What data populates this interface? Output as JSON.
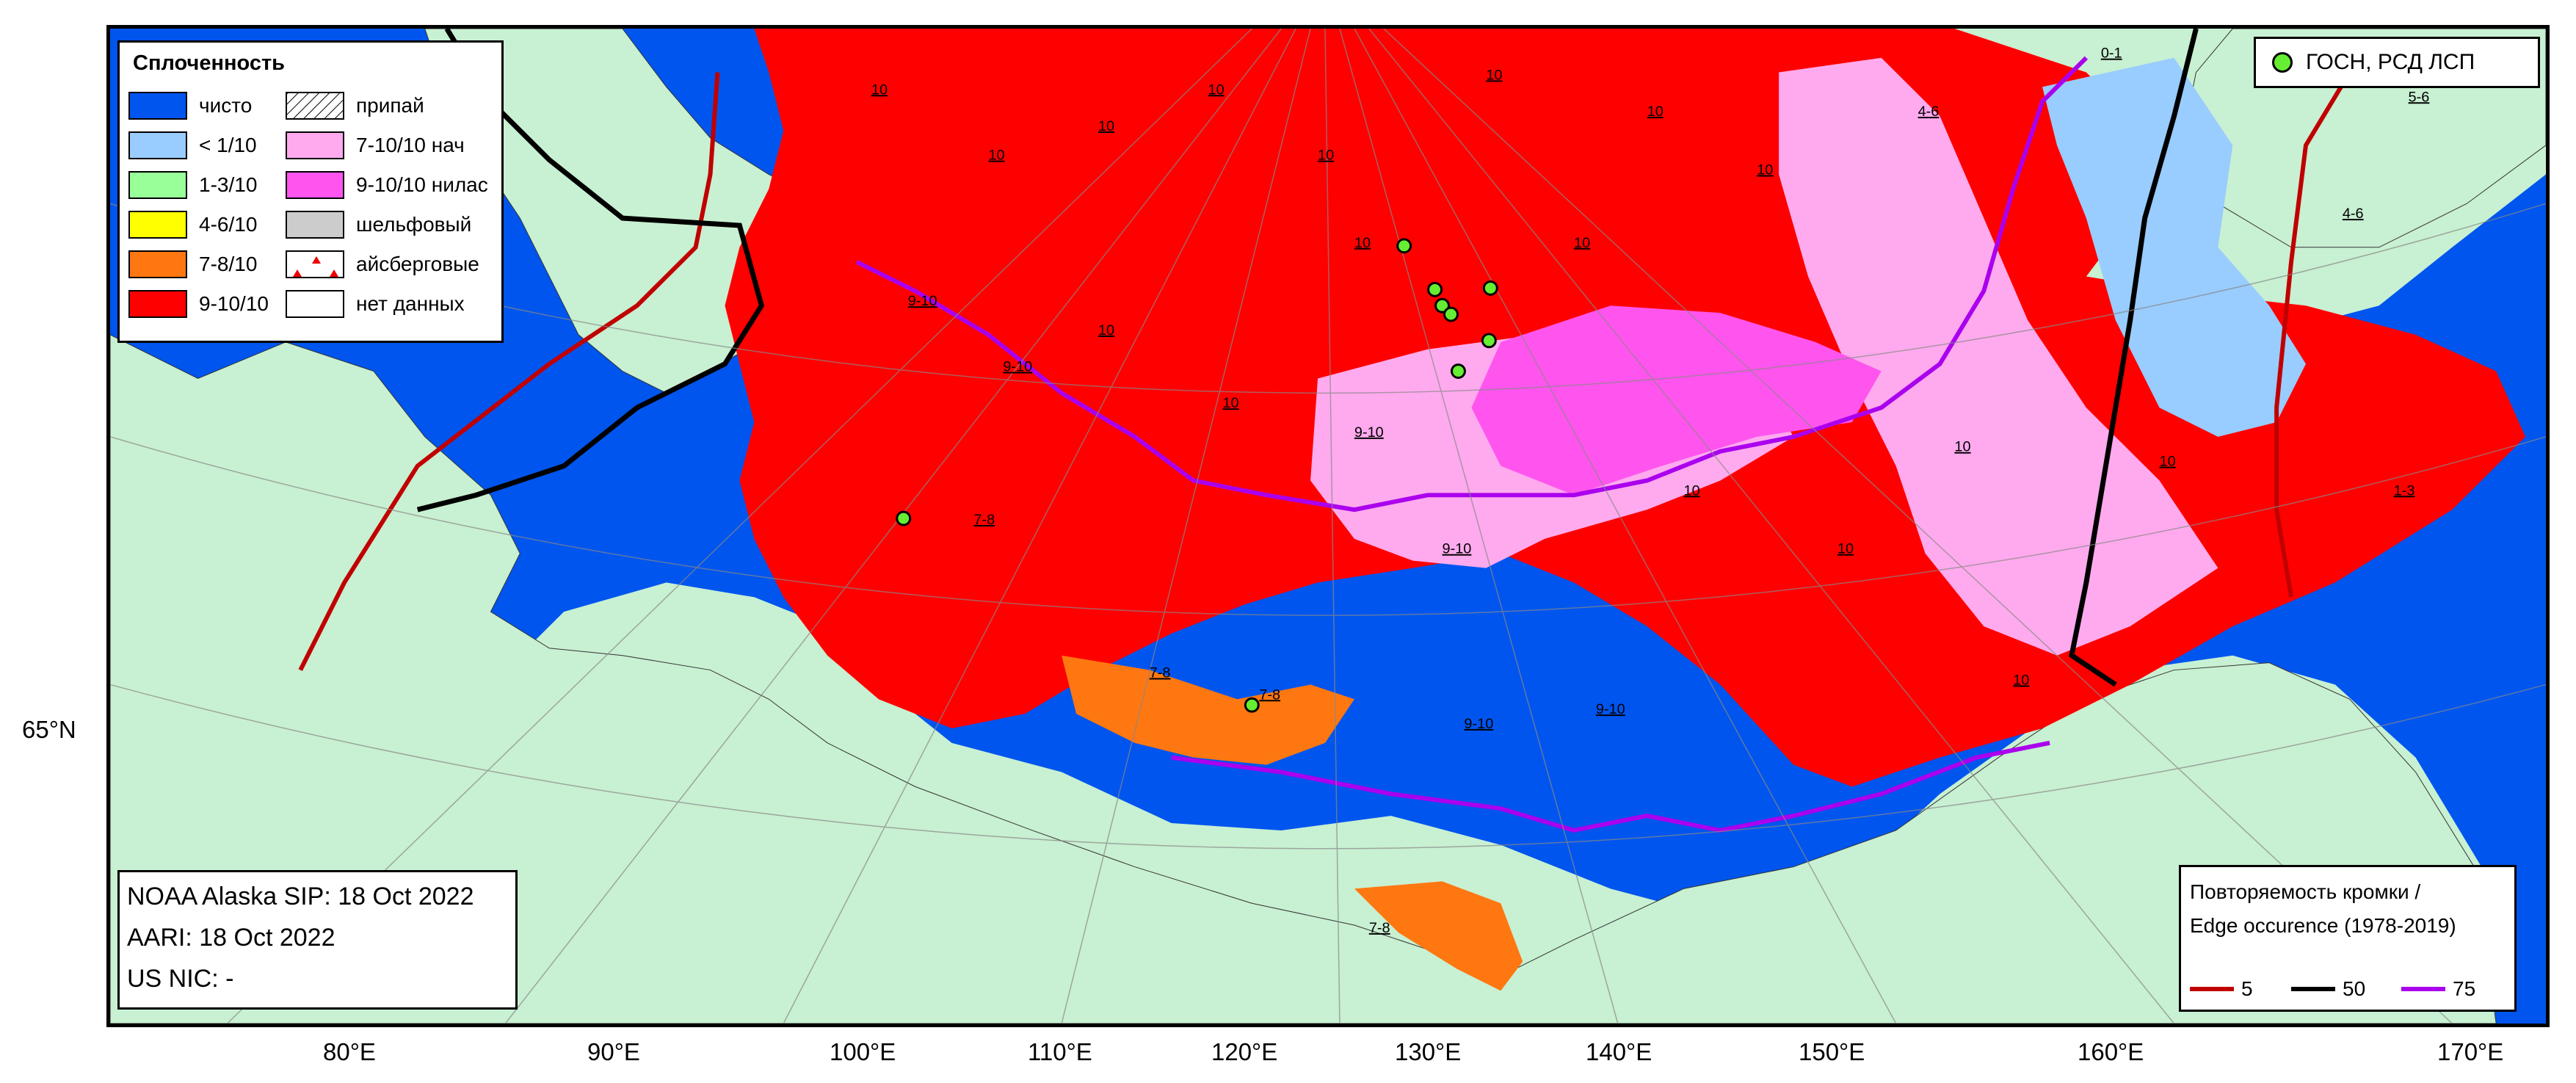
{
  "map": {
    "colors": {
      "land": "#c8f0d2",
      "open_water": "#0055ee",
      "very_open": "#99ccff",
      "c13": "#99ff99",
      "c46": "#ffff00",
      "c78": "#ff7711",
      "c910": "#ff0000",
      "young_ice": "#ffaaee",
      "nilas": "#ff55ee",
      "edge5": "#c00000",
      "edge50": "#000000",
      "edge75": "#aa00ee",
      "station": "#66ee33"
    },
    "conc_labels": [
      "10",
      "10",
      "10",
      "10",
      "10",
      "10",
      "10",
      "10",
      "10",
      "10",
      "10",
      "10",
      "7-8",
      "7-8",
      "7-8",
      "7-8",
      "9-10",
      "9-10",
      "9-10",
      "9-10",
      "9-10",
      "9-10",
      "4-6",
      "4-6",
      "5-6",
      "0-1",
      "1-3",
      "10",
      "10",
      "10",
      "10",
      "10"
    ]
  },
  "legend": {
    "title": "Сплоченность",
    "items_left": [
      {
        "label": "чисто",
        "color": "#0055ee"
      },
      {
        "label": "< 1/10",
        "color": "#99ccff"
      },
      {
        "label": "1-3/10",
        "color": "#99ff99"
      },
      {
        "label": "4-6/10",
        "color": "#ffff00"
      },
      {
        "label": "7-8/10",
        "color": "#ff7711"
      },
      {
        "label": "9-10/10",
        "color": "#ff0000"
      }
    ],
    "items_right": [
      {
        "label": "припай",
        "pattern": "hatch"
      },
      {
        "label": "7-10/10 нач",
        "color": "#ffaaee"
      },
      {
        "label": "9-10/10 нилас",
        "color": "#ff55ee"
      },
      {
        "label": "шельфовый",
        "color": "#cccccc"
      },
      {
        "label": "айсберговые",
        "pattern": "iceberg"
      },
      {
        "label": "нет данных",
        "color": "#ffffff"
      }
    ]
  },
  "stations": {
    "label": "ГОСН, РСД ЛСП"
  },
  "source": {
    "line1": "NOAA Alaska SIP: 18 Oct 2022",
    "line2": "AARI: 18 Oct 2022",
    "line3": "US NIC: -"
  },
  "edge_occurrence": {
    "title_line1": "Повторяемость кромки /",
    "title_line2": "Edge occurence (1978-2019)",
    "items": [
      {
        "value": "5",
        "color": "#c00000"
      },
      {
        "value": "50",
        "color": "#000000"
      },
      {
        "value": "75",
        "color": "#aa00ee"
      }
    ]
  },
  "axes": {
    "lon_ticks": [
      "80°E",
      "90°E",
      "100°E",
      "110°E",
      "120°E",
      "130°E",
      "140°E",
      "150°E",
      "160°E",
      "170°E"
    ],
    "lat_label": "65°N"
  }
}
